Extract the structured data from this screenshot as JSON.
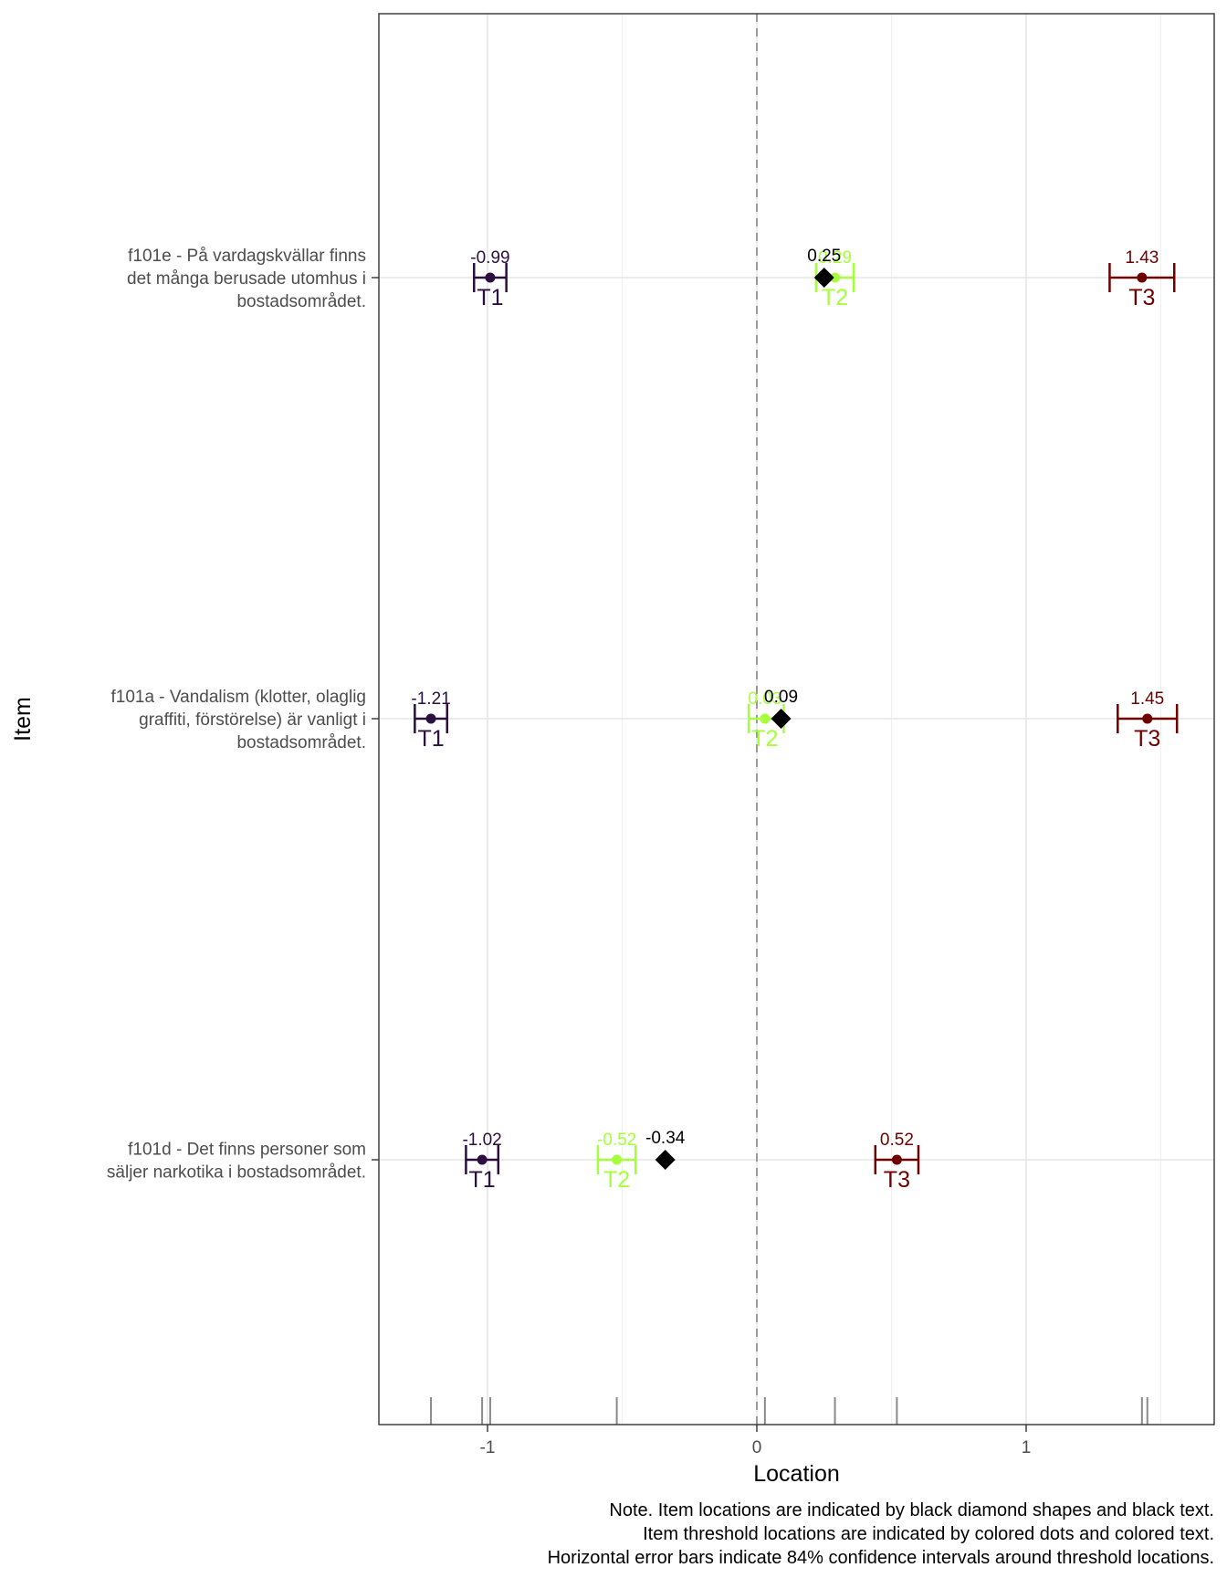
{
  "chart_data": {
    "type": "scatter",
    "xlabel": "Location",
    "ylabel": "Item",
    "xlim": [
      -1.4,
      1.7
    ],
    "x_ticks": [
      {
        "value": -1,
        "label": "-1"
      },
      {
        "value": 0,
        "label": "0"
      },
      {
        "value": 1,
        "label": "1"
      }
    ],
    "grid": true,
    "reference_line": {
      "x": 0,
      "style": "dashed"
    },
    "colors": {
      "T1": "#2b0f3f",
      "T2": "#a5ff3a",
      "T3": "#6e0000",
      "item": "#000000"
    },
    "items": [
      {
        "label_lines": [
          "f101e - På vardagskvällar finns",
          "det många berusade utomhus i",
          "bostadsområdet."
        ],
        "location": 0.25,
        "location_label": "0.25",
        "thresholds": [
          {
            "name": "T1",
            "value": -0.99,
            "label": "-0.99",
            "ci": [
              -1.05,
              -0.93
            ]
          },
          {
            "name": "T2",
            "value": 0.29,
            "label": "0.29",
            "ci": [
              0.22,
              0.36
            ]
          },
          {
            "name": "T3",
            "value": 1.43,
            "label": "1.43",
            "ci": [
              1.31,
              1.55
            ]
          }
        ]
      },
      {
        "label_lines": [
          "f101a - Vandalism (klotter, olaglig",
          "graffiti, förstörelse) är vanligt i",
          "bostadsområdet."
        ],
        "location": 0.09,
        "location_label": "0.09",
        "thresholds": [
          {
            "name": "T1",
            "value": -1.21,
            "label": "-1.21",
            "ci": [
              -1.27,
              -1.15
            ]
          },
          {
            "name": "T2",
            "value": 0.03,
            "label": "0.03",
            "ci": [
              -0.03,
              0.1
            ]
          },
          {
            "name": "T3",
            "value": 1.45,
            "label": "1.45",
            "ci": [
              1.34,
              1.56
            ]
          }
        ]
      },
      {
        "label_lines": [
          "f101d - Det finns personer som",
          "säljer narkotika i bostadsområdet."
        ],
        "location": -0.34,
        "location_label": "-0.34",
        "thresholds": [
          {
            "name": "T1",
            "value": -1.02,
            "label": "-1.02",
            "ci": [
              -1.08,
              -0.96
            ]
          },
          {
            "name": "T2",
            "value": -0.52,
            "label": "-0.52",
            "ci": [
              -0.59,
              -0.45
            ]
          },
          {
            "name": "T3",
            "value": 0.52,
            "label": "0.52",
            "ci": [
              0.44,
              0.6
            ]
          }
        ]
      }
    ],
    "rug": [
      -1.21,
      -1.02,
      -0.99,
      -0.52,
      0.03,
      0.29,
      0.52,
      1.43,
      1.45
    ]
  },
  "note_lines": [
    "Note. Item locations are indicated by black diamond shapes and black text.",
    "Item threshold locations are indicated by colored dots and colored text.",
    "Horizontal error bars indicate 84% confidence intervals around threshold locations."
  ]
}
